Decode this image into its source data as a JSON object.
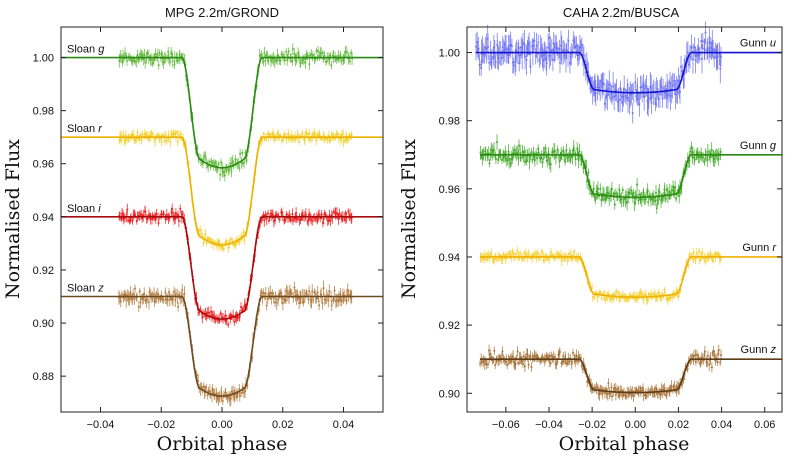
{
  "chart_data": [
    {
      "type": "line",
      "title": "MPG 2.2m/GROND",
      "xlabel": "Orbital phase",
      "ylabel": "Normalised Flux",
      "xlim": [
        -0.053,
        0.053
      ],
      "ylim": [
        0.8665,
        1.0115
      ],
      "xticks": [
        -0.04,
        -0.02,
        0.0,
        0.02,
        0.04
      ],
      "xtick_labels": [
        "−0.04",
        "−0.02",
        "0.00",
        "0.02",
        "0.04"
      ],
      "yticks": [
        0.88,
        0.9,
        0.92,
        0.94,
        0.96,
        0.98,
        1.0
      ],
      "ytick_labels": [
        "0.88",
        "0.90",
        "0.92",
        "0.94",
        "0.96",
        "0.98",
        "1.00"
      ],
      "grid": false,
      "series": [
        {
          "name": "Sloan g",
          "label_main": "Sloan",
          "label_band": "g",
          "offset": 1.0,
          "color_data": "#5fb83a",
          "color_model": "#2a8a12",
          "data_x": [
            -0.034,
            0.043
          ],
          "depth": 0.0415,
          "t_total": 0.0132,
          "t_flat": 0.0073,
          "noise": 0.0012,
          "error": 0.0016,
          "model_x": [
            -0.053,
            0.053
          ]
        },
        {
          "name": "Sloan r",
          "label_main": "Sloan",
          "label_band": "r",
          "offset": 0.97,
          "color_data": "#f2d02a",
          "color_model": "#f0b000",
          "data_x": [
            -0.034,
            0.043
          ],
          "depth": 0.0405,
          "t_total": 0.0132,
          "t_flat": 0.0073,
          "noise": 0.0009,
          "error": 0.0013,
          "model_x": [
            -0.053,
            0.053
          ]
        },
        {
          "name": "Sloan i",
          "label_main": "Sloan",
          "label_band": "i",
          "offset": 0.94,
          "color_data": "#ee1c1c",
          "color_model": "#a80c0c",
          "data_x": [
            -0.034,
            0.043
          ],
          "depth": 0.0385,
          "t_total": 0.0132,
          "t_flat": 0.0073,
          "noise": 0.0011,
          "error": 0.0015,
          "model_x": [
            -0.053,
            0.053
          ]
        },
        {
          "name": "Sloan z",
          "label_main": "Sloan",
          "label_band": "z",
          "offset": 0.91,
          "color_data": "#b07a3c",
          "color_model": "#6e4a20",
          "data_x": [
            -0.034,
            0.043
          ],
          "depth": 0.0375,
          "t_total": 0.0132,
          "t_flat": 0.0073,
          "noise": 0.0014,
          "error": 0.0018,
          "model_x": [
            -0.053,
            0.053
          ]
        }
      ]
    },
    {
      "type": "line",
      "title": "CAHA 2.2m/BUSCA",
      "xlabel": "Orbital phase",
      "ylabel": "Normalised Flux",
      "xlim": [
        -0.078,
        0.068
      ],
      "ylim": [
        0.8945,
        1.0075
      ],
      "xticks": [
        -0.06,
        -0.04,
        -0.02,
        0.0,
        0.02,
        0.04,
        0.06
      ],
      "xtick_labels": [
        "−0.06",
        "−0.04",
        "−0.02",
        "0.00",
        "0.02",
        "0.04",
        "0.06"
      ],
      "yticks": [
        0.9,
        0.92,
        0.94,
        0.96,
        0.98,
        1.0
      ],
      "ytick_labels": [
        "0.90",
        "0.92",
        "0.94",
        "0.96",
        "0.98",
        "1.00"
      ],
      "grid": false,
      "series": [
        {
          "name": "Gunn u",
          "label_main": "Gunn",
          "label_band": "u",
          "offset": 1.0,
          "color_data": "#6e72f2",
          "color_model": "#1414cc",
          "data_x": [
            -0.074,
            0.04
          ],
          "depth": 0.0118,
          "t_total": 0.026,
          "t_flat": 0.019,
          "noise": 0.0018,
          "error": 0.0028,
          "model_x": [
            -0.074,
            0.068
          ]
        },
        {
          "name": "Gunn g",
          "label_main": "Gunn",
          "label_band": "g",
          "offset": 0.97,
          "color_data": "#43a828",
          "color_model": "#2a8a12",
          "data_x": [
            -0.072,
            0.04
          ],
          "depth": 0.0125,
          "t_total": 0.026,
          "t_flat": 0.019,
          "noise": 0.0011,
          "error": 0.0015,
          "model_x": [
            -0.072,
            0.068
          ]
        },
        {
          "name": "Gunn r",
          "label_main": "Gunn",
          "label_band": "r",
          "offset": 0.94,
          "color_data": "#f5d23a",
          "color_model": "#f0b000",
          "data_x": [
            -0.072,
            0.04
          ],
          "depth": 0.0118,
          "t_total": 0.026,
          "t_flat": 0.019,
          "noise": 0.0007,
          "error": 0.001,
          "model_x": [
            -0.072,
            0.068
          ]
        },
        {
          "name": "Gunn z",
          "label_main": "Gunn",
          "label_band": "z",
          "offset": 0.91,
          "color_data": "#a8743a",
          "color_model": "#5e3c18",
          "data_x": [
            -0.072,
            0.04
          ],
          "depth": 0.0098,
          "t_total": 0.026,
          "t_flat": 0.019,
          "noise": 0.0009,
          "error": 0.0012,
          "model_x": [
            -0.072,
            0.068
          ]
        }
      ]
    }
  ]
}
